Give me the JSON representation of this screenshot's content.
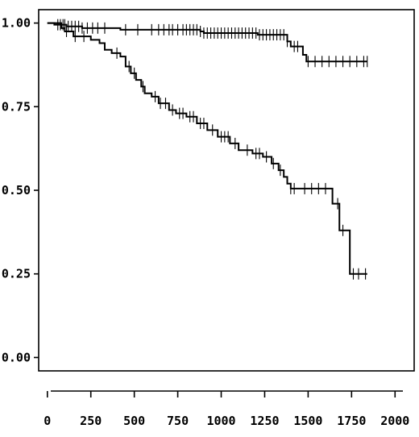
{
  "chart_data": {
    "type": "line",
    "title": "",
    "xlabel": "",
    "ylabel": "",
    "xlim": [
      -50,
      2110
    ],
    "ylim": [
      -0.04,
      1.04
    ],
    "x_ticks": [
      0,
      250,
      500,
      750,
      1000,
      1250,
      1500,
      1750,
      2000
    ],
    "x_tick_labels": [
      "0",
      "250",
      "500",
      "750",
      "1000",
      "1250",
      "1500",
      "1750",
      "2000"
    ],
    "y_ticks": [
      0.0,
      0.25,
      0.5,
      0.75,
      1.0
    ],
    "y_tick_labels": [
      "0.00",
      "0.25",
      "0.50",
      "0.75",
      "1.00"
    ],
    "grid": false,
    "series": [
      {
        "style": "step",
        "color": "#000000",
        "points": [
          [
            0,
            1.0
          ],
          [
            40,
            0.995
          ],
          [
            110,
            0.99
          ],
          [
            200,
            0.985
          ],
          [
            420,
            0.98
          ],
          [
            880,
            0.975
          ],
          [
            900,
            0.97
          ],
          [
            1210,
            0.965
          ],
          [
            1380,
            0.945
          ],
          [
            1400,
            0.93
          ],
          [
            1470,
            0.905
          ],
          [
            1490,
            0.885
          ],
          [
            1840,
            0.885
          ]
        ],
        "censored": [
          60,
          75,
          90,
          100,
          120,
          140,
          160,
          180,
          200,
          230,
          260,
          290,
          330,
          450,
          520,
          600,
          640,
          670,
          700,
          720,
          750,
          780,
          800,
          820,
          840,
          860,
          880,
          900,
          920,
          940,
          960,
          980,
          1000,
          1020,
          1040,
          1060,
          1080,
          1100,
          1120,
          1140,
          1160,
          1180,
          1200,
          1220,
          1240,
          1260,
          1280,
          1300,
          1320,
          1340,
          1360,
          1380,
          1420,
          1440,
          1500,
          1540,
          1580,
          1620,
          1660,
          1700,
          1740,
          1780,
          1820,
          1840
        ]
      },
      {
        "style": "step",
        "color": "#000000",
        "points": [
          [
            0,
            1.0
          ],
          [
            80,
            0.985
          ],
          [
            100,
            0.975
          ],
          [
            150,
            0.96
          ],
          [
            250,
            0.95
          ],
          [
            300,
            0.94
          ],
          [
            330,
            0.92
          ],
          [
            370,
            0.91
          ],
          [
            420,
            0.9
          ],
          [
            450,
            0.87
          ],
          [
            480,
            0.85
          ],
          [
            510,
            0.83
          ],
          [
            540,
            0.81
          ],
          [
            560,
            0.79
          ],
          [
            600,
            0.78
          ],
          [
            640,
            0.76
          ],
          [
            700,
            0.74
          ],
          [
            740,
            0.73
          ],
          [
            800,
            0.72
          ],
          [
            860,
            0.7
          ],
          [
            920,
            0.68
          ],
          [
            980,
            0.66
          ],
          [
            1050,
            0.64
          ],
          [
            1100,
            0.62
          ],
          [
            1180,
            0.61
          ],
          [
            1240,
            0.6
          ],
          [
            1290,
            0.58
          ],
          [
            1330,
            0.56
          ],
          [
            1360,
            0.54
          ],
          [
            1380,
            0.52
          ],
          [
            1400,
            0.505
          ],
          [
            1640,
            0.46
          ],
          [
            1680,
            0.38
          ],
          [
            1740,
            0.25
          ],
          [
            1840,
            0.25
          ]
        ],
        "censored": [
          110,
          160,
          210,
          400,
          470,
          500,
          550,
          620,
          650,
          680,
          720,
          760,
          780,
          820,
          840,
          880,
          900,
          950,
          1000,
          1020,
          1040,
          1080,
          1150,
          1200,
          1220,
          1260,
          1300,
          1340,
          1400,
          1420,
          1480,
          1520,
          1560,
          1600,
          1670,
          1700,
          1760,
          1790,
          1830
        ]
      }
    ]
  }
}
